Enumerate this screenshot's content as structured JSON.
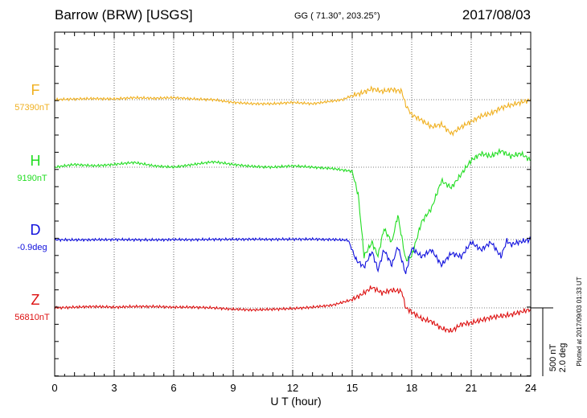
{
  "header": {
    "title": "Barrow (BRW)  [USGS]",
    "coords": "GG ( 71.30°, 203.25°)",
    "date": "2017/08/03"
  },
  "chart_data": {
    "type": "line",
    "xlabel": "U T (hour)",
    "xlim": [
      0,
      24
    ],
    "xticks": [
      0,
      3,
      6,
      9,
      12,
      15,
      18,
      21,
      24
    ],
    "xtick_labels": [
      "0",
      "3",
      "6",
      "9",
      "12",
      "15",
      "18",
      "21",
      "24"
    ],
    "grid": true,
    "scale_bar": {
      "line1": "500 nT",
      "line2": "2.0 deg"
    },
    "plotted_note": "Plotted at 2017/09/03 01:33 UT",
    "series": [
      {
        "name": "F",
        "baseline_label": "57390nT",
        "color": "#f0b020",
        "x": [
          0,
          1,
          2,
          3,
          4,
          5,
          6,
          7,
          8,
          9,
          10,
          11,
          12,
          13,
          14,
          14.5,
          15,
          15.5,
          16,
          16.5,
          17,
          17.5,
          17.7,
          18,
          18.5,
          19,
          19.5,
          20,
          20.5,
          21,
          21.5,
          22,
          22.5,
          23,
          23.5,
          24
        ],
        "y": [
          0,
          5,
          8,
          5,
          15,
          10,
          15,
          5,
          0,
          -20,
          -30,
          -30,
          -20,
          -30,
          -10,
          0,
          30,
          50,
          80,
          60,
          75,
          60,
          -40,
          -110,
          -150,
          -200,
          -180,
          -250,
          -200,
          -160,
          -120,
          -100,
          -60,
          -40,
          -20,
          0
        ]
      },
      {
        "name": "H",
        "baseline_label": "9190nT",
        "color": "#22dd22",
        "x": [
          0,
          1,
          2,
          3,
          4,
          5,
          6,
          7,
          8,
          9,
          10,
          11,
          12,
          13,
          14,
          15,
          15.3,
          15.6,
          16,
          16.3,
          16.6,
          17,
          17.3,
          17.7,
          18,
          18.5,
          19,
          19.5,
          20,
          20.5,
          21,
          21.5,
          22,
          22.5,
          23,
          23.5,
          24
        ],
        "y": [
          0,
          20,
          10,
          20,
          35,
          10,
          0,
          20,
          40,
          20,
          5,
          0,
          10,
          0,
          -10,
          -30,
          -200,
          -650,
          -550,
          -650,
          -450,
          -550,
          -350,
          -680,
          -650,
          -400,
          -300,
          -100,
          -150,
          -50,
          50,
          100,
          80,
          120,
          80,
          100,
          50
        ]
      },
      {
        "name": "D",
        "baseline_label": "-0.9deg",
        "color": "#1010dd",
        "x": [
          0,
          1,
          2,
          3,
          4,
          5,
          6,
          7,
          8,
          9,
          10,
          11,
          12,
          13,
          14,
          14.8,
          15.2,
          15.6,
          16,
          16.3,
          16.6,
          17,
          17.3,
          17.7,
          18,
          18.5,
          19,
          19.5,
          20,
          20.5,
          21,
          21.5,
          22,
          22.5,
          22.8,
          23,
          23.5,
          24
        ],
        "y": [
          -5,
          -10,
          -5,
          0,
          -5,
          -10,
          0,
          -5,
          5,
          5,
          10,
          5,
          10,
          10,
          0,
          -20,
          -600,
          -800,
          -350,
          -900,
          -300,
          -750,
          -200,
          -1000,
          -250,
          -500,
          -300,
          -750,
          -400,
          -500,
          -80,
          -300,
          -80,
          -500,
          -30,
          -150,
          -60,
          -5
        ]
      },
      {
        "name": "Z",
        "baseline_label": "56810nT",
        "color": "#dd1010",
        "x": [
          0,
          1,
          2,
          3,
          4,
          5,
          6,
          7,
          8,
          9,
          10,
          11,
          12,
          13,
          14,
          15,
          15.5,
          16,
          16.5,
          17,
          17.5,
          17.7,
          18,
          18.5,
          19,
          19.5,
          20,
          20.5,
          21,
          21.5,
          22,
          22.5,
          23,
          23.5,
          24
        ],
        "y": [
          0,
          5,
          10,
          5,
          10,
          10,
          5,
          5,
          0,
          -10,
          -15,
          -10,
          -5,
          5,
          20,
          60,
          100,
          150,
          110,
          130,
          120,
          0,
          -30,
          -80,
          -100,
          -150,
          -170,
          -120,
          -110,
          -90,
          -70,
          -60,
          -50,
          -30,
          -10
        ]
      }
    ]
  }
}
